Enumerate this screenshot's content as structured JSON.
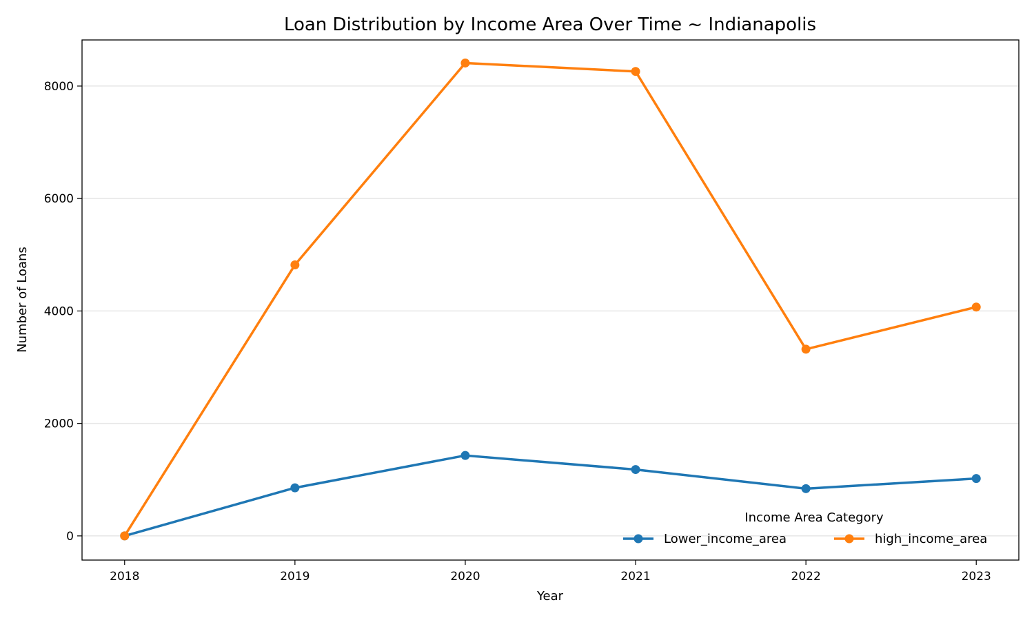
{
  "chart_data": {
    "type": "line",
    "title": "Loan Distribution by Income Area Over Time ~ Indianapolis",
    "xlabel": "Year",
    "ylabel": "Number of Loans",
    "x": [
      2018,
      2019,
      2020,
      2021,
      2022,
      2023
    ],
    "x_tick_labels": [
      "2018",
      "2019",
      "2020",
      "2021",
      "2022",
      "2023"
    ],
    "xlim": [
      2017.75,
      2023.25
    ],
    "ylim": [
      -430,
      8820
    ],
    "y_ticks": [
      0,
      2000,
      4000,
      6000,
      8000
    ],
    "y_tick_labels": [
      "0",
      "2000",
      "4000",
      "6000",
      "8000"
    ],
    "grid": "horizontal",
    "legend": {
      "title": "Income Area Category",
      "placement": "lower-right"
    },
    "series": [
      {
        "name": "Lower_income_area",
        "color": "#1f77b4",
        "values": [
          0,
          855,
          1430,
          1180,
          840,
          1020
        ]
      },
      {
        "name": "high_income_area",
        "color": "#ff7f0e",
        "values": [
          0,
          4820,
          8410,
          8260,
          3320,
          4070
        ]
      }
    ]
  }
}
